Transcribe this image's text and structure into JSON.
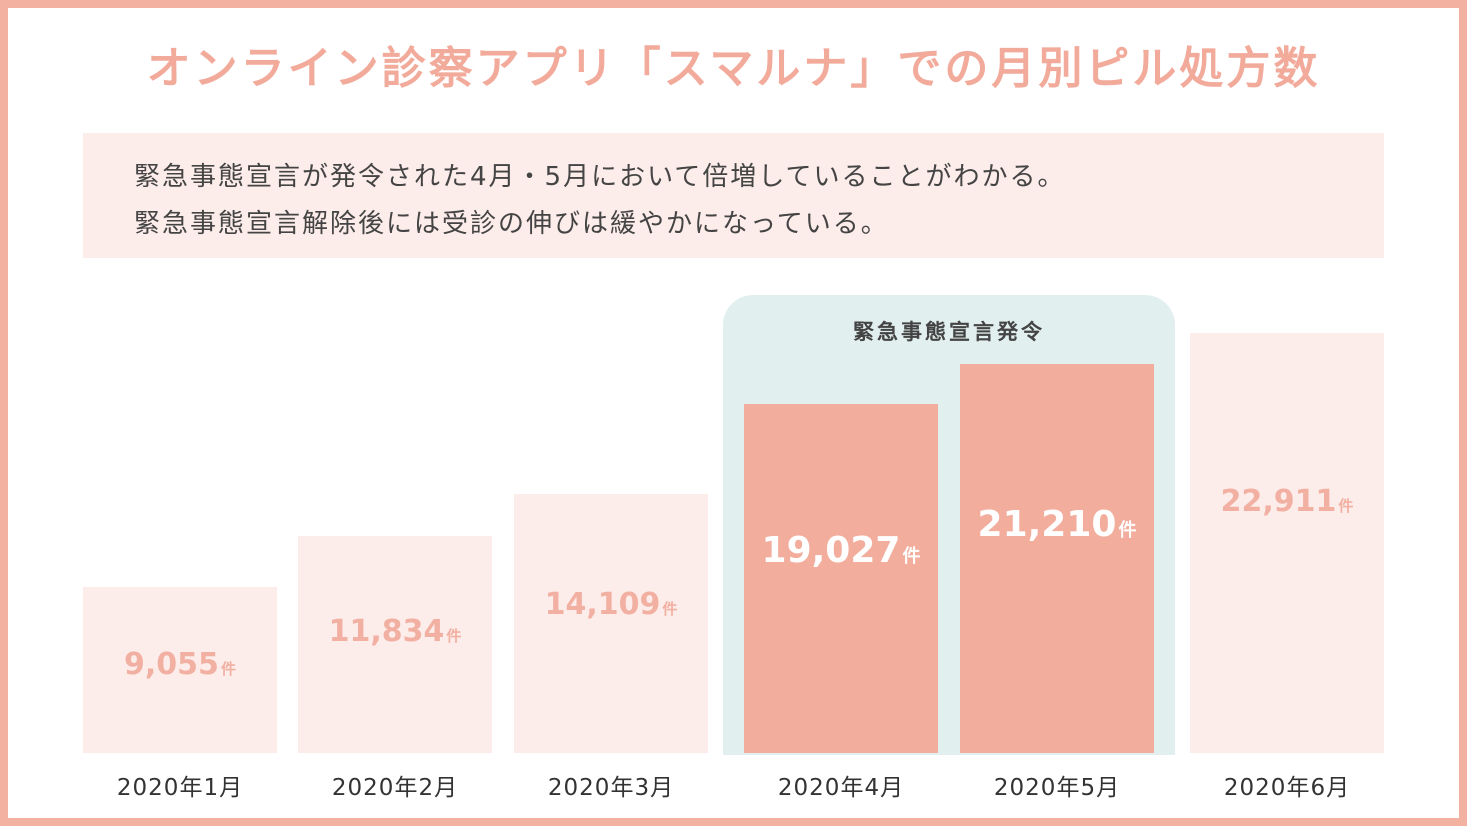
{
  "chart_data": {
    "type": "bar",
    "title": "オンライン診察アプリ「スマルナ」での月別ピル処方数",
    "description_lines": [
      "緊急事態宣言が発令された4月・5月において倍増していることがわかる。",
      "緊急事態宣言解除後には受診の伸びは緩やかになっている。"
    ],
    "categories": [
      "2020年1月",
      "2020年2月",
      "2020年3月",
      "2020年4月",
      "2020年5月",
      "2020年6月"
    ],
    "values": [
      9055,
      11834,
      14109,
      19027,
      21210,
      22911
    ],
    "value_labels": [
      "9,055",
      "11,834",
      "14,109",
      "19,027",
      "21,210",
      "22,911"
    ],
    "unit": "件",
    "highlight": {
      "label": "緊急事態宣言発令",
      "categories": [
        "2020年4月",
        "2020年5月"
      ]
    },
    "ylim": [
      0,
      22911
    ],
    "grid": false,
    "colors": {
      "border": "#f3b1a2",
      "title": "#f2aa9b",
      "bar_normal": "#fcecea",
      "bar_highlight": "#f2ad9d",
      "highlight_background": "#e1efee",
      "value_normal": "#f2b0a2",
      "value_highlight": "#ffffff"
    }
  }
}
